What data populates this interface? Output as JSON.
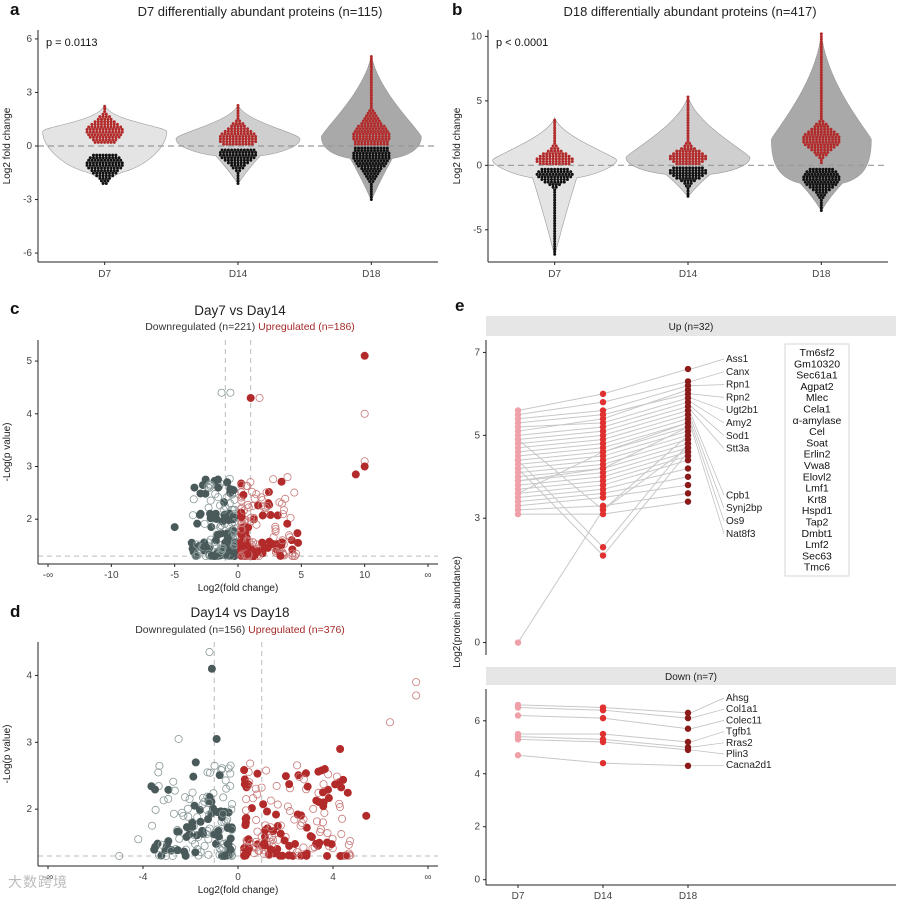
{
  "panels": {
    "a": {
      "label": "a",
      "title": "D7 differentially abundant proteins (n=115)",
      "pvalue": "p = 0.0113"
    },
    "b": {
      "label": "b",
      "title": "D18 differentially abundant proteins (n=417)",
      "pvalue": "p < 0.0001"
    },
    "c": {
      "label": "c",
      "title": "Day7 vs Day14",
      "down_text": "Downregulated (n=221)",
      "up_text": "Upregulated (n=186)"
    },
    "d": {
      "label": "d",
      "title": "Day14 vs Day18",
      "down_text": "Downregulated (n=156)",
      "up_text": "Upregulated (n=376)"
    },
    "e": {
      "label": "e",
      "up_strip": "Up (n=32)",
      "down_strip": "Down (n=7)"
    }
  },
  "watermark": "大数跨境",
  "colors": {
    "up": "#b22a2a",
    "down": "#4a5a5a",
    "light_red": "#f0a0a8",
    "grey_violin": "#d9d9d9",
    "dark_violin": "#a8a8a8"
  },
  "chart_data": [
    {
      "id": "a",
      "type": "violin-dotplot",
      "title": "D7 differentially abundant proteins (n=115)",
      "ylabel": "Log2 fold change",
      "xlabel": "",
      "categories": [
        "D7",
        "D14",
        "D18"
      ],
      "ylim": [
        -6.5,
        6.5
      ],
      "yticks": [
        -6,
        -3,
        0,
        3,
        6
      ],
      "reference_line": 0,
      "annotation": "p = 0.0113",
      "series": [
        {
          "category": "D7",
          "up_range": [
            0.2,
            2.3
          ],
          "up_center": 0.8,
          "down_range": [
            -0.4,
            -2.1
          ],
          "down_center": -1.0
        },
        {
          "category": "D14",
          "up_range": [
            0.1,
            2.3
          ],
          "up_center": 0.4,
          "down_range": [
            -0.1,
            -2.1
          ],
          "down_center": -0.4
        },
        {
          "category": "D18",
          "up_range": [
            0.1,
            5.1
          ],
          "up_center": 0.5,
          "down_range": [
            -0.1,
            -3.0
          ],
          "down_center": -0.5
        }
      ]
    },
    {
      "id": "b",
      "type": "violin-dotplot",
      "title": "D18 differentially abundant proteins (n=417)",
      "ylabel": "Log2 fold change",
      "xlabel": "",
      "categories": [
        "D7",
        "D14",
        "D18"
      ],
      "ylim": [
        -7.5,
        10.5
      ],
      "yticks": [
        -5,
        0,
        5,
        10
      ],
      "reference_line": 0,
      "annotation": "p < 0.0001",
      "series": [
        {
          "category": "D7",
          "up_range": [
            0.1,
            3.7
          ],
          "up_center": 0.4,
          "down_range": [
            -0.1,
            -6.9
          ],
          "down_center": -0.7
        },
        {
          "category": "D14",
          "up_range": [
            0.1,
            5.4
          ],
          "up_center": 0.6,
          "down_range": [
            -0.1,
            -2.4
          ],
          "down_center": -0.5
        },
        {
          "category": "D18",
          "up_range": [
            0.2,
            10.2
          ],
          "up_center": 2.0,
          "down_range": [
            -0.2,
            -3.5
          ],
          "down_center": -1.0
        }
      ]
    },
    {
      "id": "c",
      "type": "scatter",
      "title": "Day7 vs Day14",
      "xlabel": "Log2(fold change)",
      "ylabel": "-Log(p value)",
      "xticks": [
        "-∞",
        "-10",
        "-5",
        "0",
        "5",
        "10",
        "∞"
      ],
      "yticks": [
        2,
        3,
        4,
        5
      ],
      "ylim": [
        1.15,
        5.4
      ],
      "vlines": [
        -1,
        1
      ],
      "hline": 1.3,
      "series": [
        {
          "name": "Downregulated (n=221)",
          "color": "#4a5a5a",
          "count": 221,
          "x_range": [
            -5,
            -0.2
          ],
          "y_range": [
            1.3,
            4.4
          ]
        },
        {
          "name": "Upregulated (n=186)",
          "color": "#b22a2a",
          "count": 186,
          "x_range": [
            0.2,
            10
          ],
          "y_range": [
            1.3,
            5.1
          ]
        }
      ]
    },
    {
      "id": "d",
      "type": "scatter",
      "title": "Day14 vs Day18",
      "xlabel": "Log2(fold change)",
      "ylabel": "-Log(p value)",
      "xticks": [
        "-∞",
        "-4",
        "0",
        "4",
        "∞"
      ],
      "yticks": [
        2,
        3,
        4
      ],
      "ylim": [
        1.15,
        4.5
      ],
      "vlines": [
        -1,
        1
      ],
      "hline": 1.3,
      "series": [
        {
          "name": "Downregulated (n=156)",
          "color": "#4a5a5a",
          "count": 156,
          "x_range": [
            -4,
            -0.2
          ],
          "y_range": [
            1.3,
            4.3
          ]
        },
        {
          "name": "Upregulated (n=376)",
          "color": "#b22a2a",
          "count": 376,
          "x_range": [
            0.2,
            7
          ],
          "y_range": [
            1.3,
            3.9
          ]
        }
      ]
    },
    {
      "id": "e",
      "type": "line",
      "ylabel": "Log2(protein abundance)",
      "categories": [
        "D7",
        "D14",
        "D18"
      ],
      "facets": [
        {
          "name": "Up (n=32)",
          "ylim": [
            -0.3,
            7.3
          ],
          "yticks": [
            0,
            3,
            5,
            7
          ],
          "labels_right": [
            "Ass1",
            "Canx",
            "Rpn1",
            "Rpn2",
            "Ugt2b1",
            "Amy2",
            "Sod1",
            "Stt3a",
            "Cpb1",
            "Synj2bp",
            "Os9",
            "Nat8f3"
          ],
          "legend_box": [
            "Tm6sf2",
            "Gm10320",
            "Sec61a1",
            "Agpat2",
            "Mlec",
            "Cela1",
            "α-amylase",
            "Cel",
            "Soat",
            "Erlin2",
            "Vwa8",
            "Elovl2",
            "Lmf1",
            "Krt8",
            "Hspd1",
            "Tap2",
            "Dmbt1",
            "Lmf2",
            "Sec63",
            "Tmc6"
          ],
          "series": [
            [
              5.6,
              6.0,
              6.6
            ],
            [
              5.5,
              5.8,
              6.3
            ],
            [
              5.4,
              5.6,
              6.2
            ],
            [
              5.3,
              5.5,
              6.0
            ],
            [
              5.2,
              5.3,
              5.9
            ],
            [
              5.0,
              5.2,
              5.8
            ],
            [
              4.9,
              5.1,
              5.7
            ],
            [
              4.8,
              5.0,
              5.6
            ],
            [
              4.7,
              4.9,
              5.5
            ],
            [
              4.6,
              4.8,
              5.4
            ],
            [
              4.5,
              4.7,
              5.3
            ],
            [
              4.4,
              4.6,
              5.2
            ],
            [
              4.3,
              4.5,
              5.1
            ],
            [
              4.2,
              4.4,
              5.0
            ],
            [
              4.1,
              4.3,
              4.9
            ],
            [
              4.0,
              4.2,
              4.8
            ],
            [
              3.9,
              4.1,
              4.7
            ],
            [
              3.8,
              4.0,
              4.6
            ],
            [
              3.7,
              3.9,
              4.5
            ],
            [
              3.6,
              3.8,
              4.4
            ],
            [
              3.5,
              3.7,
              4.2
            ],
            [
              3.4,
              3.6,
              4.0
            ],
            [
              3.3,
              3.5,
              3.8
            ],
            [
              3.2,
              3.3,
              3.6
            ],
            [
              3.1,
              3.1,
              3.4
            ],
            [
              5.1,
              5.4,
              6.1
            ],
            [
              4.9,
              3.2,
              5.0
            ],
            [
              4.4,
              2.3,
              4.8
            ],
            [
              4.2,
              2.1,
              4.6
            ],
            [
              3.9,
              4.2,
              5.2
            ],
            [
              3.6,
              4.6,
              5.3
            ],
            [
              0.0,
              3.2,
              4.7
            ]
          ]
        },
        {
          "name": "Down (n=7)",
          "ylim": [
            -0.2,
            7.2
          ],
          "yticks": [
            0,
            2,
            4,
            6
          ],
          "labels_right": [
            "Ahsg",
            "Col1a1",
            "Colec11",
            "Tgfb1",
            "Rras2",
            "Plin3",
            "Cacna2d1"
          ],
          "series": [
            [
              6.6,
              6.5,
              6.3
            ],
            [
              6.5,
              6.4,
              6.1
            ],
            [
              6.2,
              6.1,
              5.7
            ],
            [
              5.5,
              5.5,
              5.2
            ],
            [
              5.4,
              5.3,
              5.0
            ],
            [
              5.3,
              5.2,
              4.9
            ],
            [
              4.7,
              4.4,
              4.3
            ]
          ]
        }
      ]
    }
  ]
}
